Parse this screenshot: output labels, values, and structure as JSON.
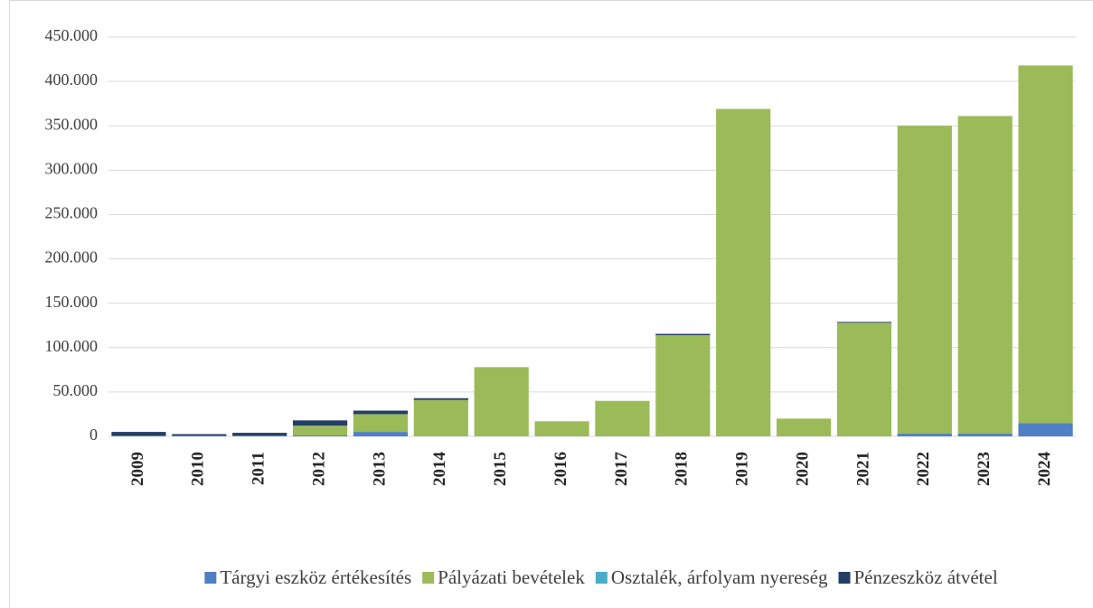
{
  "chart_data": {
    "type": "stacked_bar",
    "categories": [
      "2009",
      "2010",
      "2011",
      "2012",
      "2013",
      "2014",
      "2015",
      "2016",
      "2017",
      "2018",
      "2019",
      "2020",
      "2021",
      "2022",
      "2023",
      "2024"
    ],
    "series": [
      {
        "name": "Tárgyi eszköz értékesítés",
        "color": "#4f7fc4",
        "values": [
          1000,
          1000,
          1000,
          1000,
          5000,
          0,
          0,
          0,
          0,
          0,
          0,
          0,
          0,
          3000,
          3000,
          15000
        ]
      },
      {
        "name": "Pályázati bevételek",
        "color": "#9bbb59",
        "values": [
          0,
          0,
          0,
          11000,
          20000,
          41000,
          78000,
          17000,
          40000,
          114000,
          369000,
          20000,
          128000,
          347000,
          358000,
          403000
        ]
      },
      {
        "name": "Osztalék, árfolyam nyereség",
        "color": "#4bacc6",
        "values": [
          0,
          0,
          0,
          0,
          0,
          0,
          0,
          0,
          0,
          0,
          0,
          0,
          0,
          0,
          0,
          0
        ]
      },
      {
        "name": "Pénzeszköz átvétel",
        "color": "#243f66",
        "values": [
          4000,
          1500,
          3000,
          6000,
          4000,
          2000,
          0,
          0,
          0,
          1500,
          0,
          0,
          1000,
          0,
          0,
          0
        ]
      }
    ],
    "ylim": [
      0,
      450000
    ],
    "yticks": [
      0,
      {
        "value": 50000,
        "label": "50.000"
      },
      {
        "value": 100000,
        "label": "100.000"
      },
      {
        "value": 150000,
        "label": "150.000"
      },
      {
        "value": 200000,
        "label": "200.000"
      },
      {
        "value": 250000,
        "label": "250.000"
      },
      {
        "value": 300000,
        "label": "300.000"
      },
      {
        "value": 350000,
        "label": "350.000"
      },
      {
        "value": 400000,
        "label": "400.000"
      },
      {
        "value": 450000,
        "label": "450.000"
      }
    ],
    "grid": true,
    "legend": "bottom"
  }
}
